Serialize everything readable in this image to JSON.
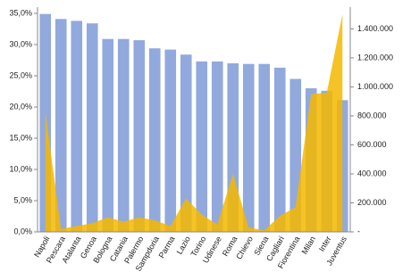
{
  "chart_data": {
    "type": "bar",
    "categories": [
      "Napoli",
      "Pescara",
      "Atalanta",
      "Genoa",
      "Bologna",
      "Catania",
      "Palermo",
      "Sampdoria",
      "Parma",
      "Lazio",
      "Torino",
      "Udinese",
      "Roma",
      "Chievo",
      "Siena",
      "Cagliari",
      "Fiorentina",
      "Milan",
      "Inter",
      "Juventus"
    ],
    "series": [
      {
        "type": "bar",
        "color": "#92a9dd",
        "values": [
          34.9,
          34.1,
          33.8,
          33.4,
          30.9,
          30.9,
          30.7,
          29.4,
          29.2,
          28.4,
          27.3,
          27.3,
          27.0,
          26.9,
          26.9,
          26.3,
          24.5,
          23.0,
          22.6,
          21.1
        ]
      },
      {
        "type": "area",
        "axis": "y2",
        "color": "#f5b800",
        "values": [
          830000,
          20000,
          40000,
          60000,
          100000,
          70000,
          100000,
          80000,
          40000,
          230000,
          120000,
          50000,
          400000,
          30000,
          10000,
          110000,
          170000,
          950000,
          960000,
          1500000
        ]
      }
    ],
    "ylim": [
      0,
      36
    ],
    "yticks": [
      {
        "value": 0,
        "label": "0,0%"
      },
      {
        "value": 5,
        "label": "5,0%"
      },
      {
        "value": 10,
        "label": "10,0%"
      },
      {
        "value": 15,
        "label": "15,0%"
      },
      {
        "value": 20,
        "label": "20,0%"
      },
      {
        "value": 25,
        "label": "25,0%"
      },
      {
        "value": 30,
        "label": "30,0%"
      },
      {
        "value": 35,
        "label": "35,0%"
      }
    ],
    "y2lim": [
      0,
      1550000
    ],
    "y2ticks": [
      {
        "value": 0,
        "label": "-"
      },
      {
        "value": 200000,
        "label": "200.000"
      },
      {
        "value": 400000,
        "label": "400.000"
      },
      {
        "value": 600000,
        "label": "600.000"
      },
      {
        "value": 800000,
        "label": "800.000"
      },
      {
        "value": 1000000,
        "label": "1.000.000"
      },
      {
        "value": 1200000,
        "label": "1.200.000"
      },
      {
        "value": 1400000,
        "label": "1.400.000"
      }
    ]
  }
}
